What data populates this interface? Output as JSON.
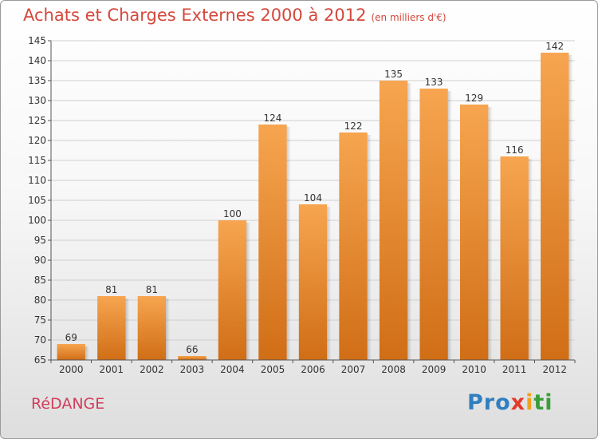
{
  "title": "Achats et Charges Externes 2000 à 2012",
  "subtitle": "(en milliers d'€)",
  "commune": "RéDANGE",
  "logo": {
    "p1": "Pro",
    "p2": "x",
    "p3": "i",
    "p4": "ti"
  },
  "colors": {
    "bar_top": "#f7a550",
    "bar_bottom": "#d06e16",
    "title": "#d4483c",
    "commune": "#d13c5a"
  },
  "chart_data": {
    "type": "bar",
    "categories": [
      "2000",
      "2001",
      "2002",
      "2003",
      "2004",
      "2005",
      "2006",
      "2007",
      "2008",
      "2009",
      "2010",
      "2011",
      "2012"
    ],
    "values": [
      69,
      81,
      81,
      66,
      100,
      124,
      104,
      122,
      135,
      133,
      129,
      116,
      142
    ],
    "ylim": [
      65,
      145
    ],
    "yticks": [
      65,
      70,
      75,
      80,
      85,
      90,
      95,
      100,
      105,
      110,
      115,
      120,
      125,
      130,
      135,
      140,
      145
    ],
    "grid": true,
    "xlabel": "",
    "ylabel": ""
  }
}
